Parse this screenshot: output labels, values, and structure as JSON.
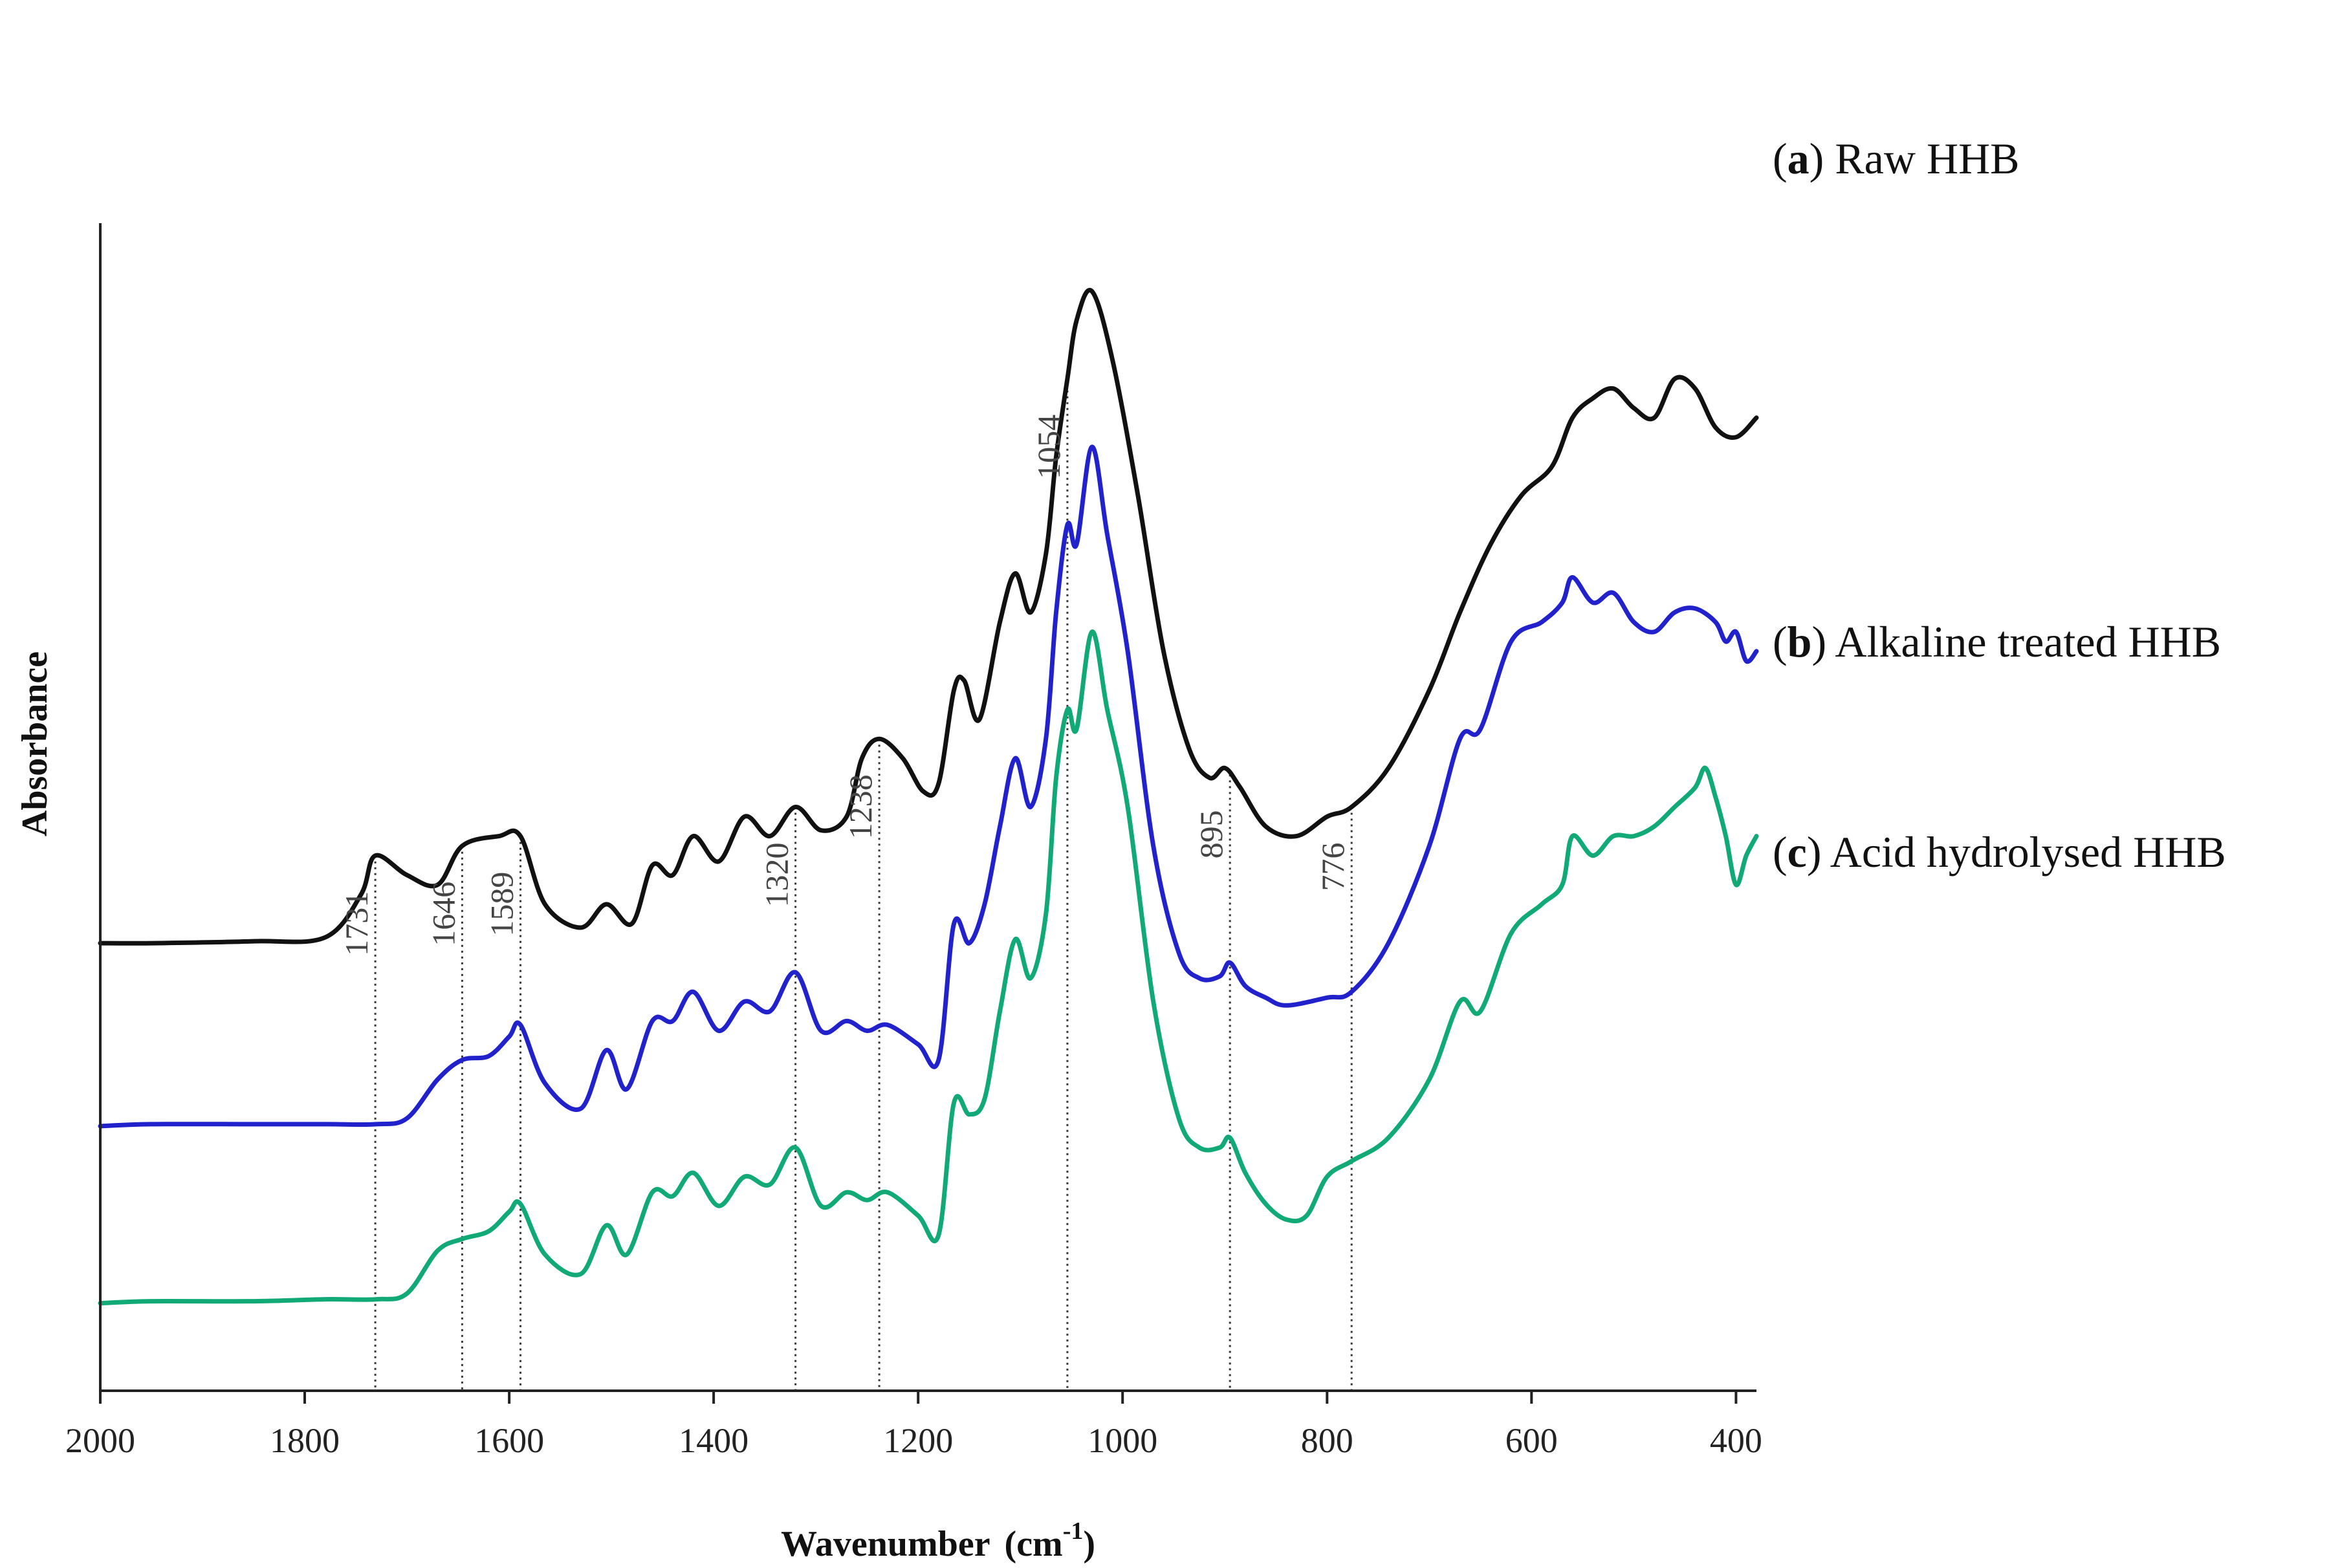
{
  "chart_data": {
    "type": "line",
    "title": "",
    "xlabel_main": "Wavenumber",
    "xlabel_unit_prefix": "(cm",
    "xlabel_unit_sup": "-1",
    "xlabel_unit_suffix": ")",
    "ylabel": "Absorbance",
    "xlim": [
      2000,
      380
    ],
    "x_reversed": true,
    "xticks": [
      "2000",
      "1800",
      "1600",
      "1400",
      "1200",
      "1000",
      "800",
      "600",
      "400"
    ],
    "xtick_values": [
      2000,
      1800,
      1600,
      1400,
      1200,
      1000,
      800,
      600,
      400
    ],
    "y_ticks_shown": false,
    "peak_markers": [
      {
        "value": 1731,
        "label": "1731"
      },
      {
        "value": 1646,
        "label": "1646"
      },
      {
        "value": 1589,
        "label": "1589"
      },
      {
        "value": 1320,
        "label": "1320"
      },
      {
        "value": 1238,
        "label": "1238"
      },
      {
        "value": 1054,
        "label": "1054"
      },
      {
        "value": 895,
        "label": "895"
      },
      {
        "value": 776,
        "label": "776"
      }
    ],
    "series": [
      {
        "name": "Raw HHB",
        "letter": "a",
        "legend_open": "(",
        "legend_close": ")",
        "legend_text": " Raw HHB",
        "color": "#111111",
        "points": [
          [
            2000,
            1.9
          ],
          [
            1950,
            1.9
          ],
          [
            1850,
            1.91
          ],
          [
            1780,
            1.93
          ],
          [
            1745,
            2.15
          ],
          [
            1731,
            2.35
          ],
          [
            1700,
            2.25
          ],
          [
            1670,
            2.2
          ],
          [
            1646,
            2.4
          ],
          [
            1610,
            2.45
          ],
          [
            1589,
            2.45
          ],
          [
            1565,
            2.1
          ],
          [
            1530,
            1.98
          ],
          [
            1505,
            2.1
          ],
          [
            1480,
            2.0
          ],
          [
            1460,
            2.3
          ],
          [
            1440,
            2.25
          ],
          [
            1420,
            2.45
          ],
          [
            1395,
            2.32
          ],
          [
            1370,
            2.55
          ],
          [
            1345,
            2.45
          ],
          [
            1320,
            2.6
          ],
          [
            1295,
            2.48
          ],
          [
            1270,
            2.55
          ],
          [
            1255,
            2.85
          ],
          [
            1238,
            2.95
          ],
          [
            1215,
            2.85
          ],
          [
            1195,
            2.68
          ],
          [
            1180,
            2.72
          ],
          [
            1165,
            3.2
          ],
          [
            1155,
            3.25
          ],
          [
            1140,
            3.05
          ],
          [
            1120,
            3.55
          ],
          [
            1105,
            3.8
          ],
          [
            1090,
            3.6
          ],
          [
            1075,
            3.9
          ],
          [
            1065,
            4.4
          ],
          [
            1054,
            4.8
          ],
          [
            1045,
            5.1
          ],
          [
            1030,
            5.25
          ],
          [
            1010,
            4.9
          ],
          [
            985,
            4.2
          ],
          [
            960,
            3.4
          ],
          [
            935,
            2.9
          ],
          [
            915,
            2.75
          ],
          [
            900,
            2.8
          ],
          [
            885,
            2.7
          ],
          [
            860,
            2.5
          ],
          [
            830,
            2.45
          ],
          [
            800,
            2.55
          ],
          [
            776,
            2.6
          ],
          [
            740,
            2.8
          ],
          [
            700,
            3.2
          ],
          [
            670,
            3.6
          ],
          [
            640,
            3.95
          ],
          [
            610,
            4.2
          ],
          [
            580,
            4.35
          ],
          [
            560,
            4.6
          ],
          [
            540,
            4.7
          ],
          [
            520,
            4.75
          ],
          [
            500,
            4.65
          ],
          [
            480,
            4.6
          ],
          [
            460,
            4.8
          ],
          [
            440,
            4.75
          ],
          [
            420,
            4.55
          ],
          [
            400,
            4.5
          ],
          [
            380,
            4.6
          ]
        ]
      },
      {
        "name": "Alkaline treated HHB",
        "letter": "b",
        "legend_open": "(",
        "legend_close": ")",
        "legend_text": " Alkaline treated HHB",
        "color": "#2222cc",
        "points": [
          [
            2000,
            0.96
          ],
          [
            1950,
            0.97
          ],
          [
            1850,
            0.97
          ],
          [
            1780,
            0.97
          ],
          [
            1730,
            0.97
          ],
          [
            1700,
            1.0
          ],
          [
            1670,
            1.2
          ],
          [
            1646,
            1.3
          ],
          [
            1620,
            1.32
          ],
          [
            1600,
            1.42
          ],
          [
            1589,
            1.48
          ],
          [
            1565,
            1.18
          ],
          [
            1530,
            1.05
          ],
          [
            1505,
            1.35
          ],
          [
            1485,
            1.15
          ],
          [
            1460,
            1.5
          ],
          [
            1440,
            1.5
          ],
          [
            1420,
            1.65
          ],
          [
            1395,
            1.45
          ],
          [
            1370,
            1.6
          ],
          [
            1345,
            1.55
          ],
          [
            1320,
            1.75
          ],
          [
            1295,
            1.45
          ],
          [
            1270,
            1.5
          ],
          [
            1250,
            1.45
          ],
          [
            1230,
            1.48
          ],
          [
            1200,
            1.38
          ],
          [
            1180,
            1.3
          ],
          [
            1165,
            2.0
          ],
          [
            1150,
            1.9
          ],
          [
            1135,
            2.1
          ],
          [
            1120,
            2.5
          ],
          [
            1105,
            2.85
          ],
          [
            1090,
            2.6
          ],
          [
            1075,
            2.95
          ],
          [
            1065,
            3.6
          ],
          [
            1054,
            4.05
          ],
          [
            1045,
            3.95
          ],
          [
            1030,
            4.45
          ],
          [
            1015,
            4.0
          ],
          [
            995,
            3.4
          ],
          [
            970,
            2.4
          ],
          [
            945,
            1.85
          ],
          [
            925,
            1.72
          ],
          [
            905,
            1.73
          ],
          [
            895,
            1.8
          ],
          [
            880,
            1.68
          ],
          [
            860,
            1.62
          ],
          [
            840,
            1.58
          ],
          [
            800,
            1.62
          ],
          [
            776,
            1.65
          ],
          [
            740,
            1.9
          ],
          [
            700,
            2.4
          ],
          [
            670,
            2.95
          ],
          [
            650,
            3.0
          ],
          [
            620,
            3.45
          ],
          [
            590,
            3.55
          ],
          [
            570,
            3.65
          ],
          [
            560,
            3.78
          ],
          [
            540,
            3.65
          ],
          [
            520,
            3.7
          ],
          [
            500,
            3.55
          ],
          [
            480,
            3.5
          ],
          [
            460,
            3.6
          ],
          [
            440,
            3.62
          ],
          [
            420,
            3.55
          ],
          [
            410,
            3.45
          ],
          [
            400,
            3.5
          ],
          [
            390,
            3.35
          ],
          [
            380,
            3.4
          ]
        ]
      },
      {
        "name": "Acid hydrolysed HHB",
        "letter": "c",
        "legend_open": "(",
        "legend_close": ")",
        "legend_text": " Acid hydrolysed HHB",
        "color": "#11aa77",
        "points": [
          [
            2000,
            0.05
          ],
          [
            1950,
            0.06
          ],
          [
            1850,
            0.06
          ],
          [
            1780,
            0.07
          ],
          [
            1730,
            0.07
          ],
          [
            1700,
            0.1
          ],
          [
            1670,
            0.32
          ],
          [
            1646,
            0.38
          ],
          [
            1620,
            0.42
          ],
          [
            1600,
            0.52
          ],
          [
            1589,
            0.56
          ],
          [
            1565,
            0.3
          ],
          [
            1530,
            0.2
          ],
          [
            1505,
            0.45
          ],
          [
            1485,
            0.3
          ],
          [
            1460,
            0.62
          ],
          [
            1440,
            0.6
          ],
          [
            1420,
            0.72
          ],
          [
            1395,
            0.55
          ],
          [
            1370,
            0.7
          ],
          [
            1345,
            0.66
          ],
          [
            1320,
            0.85
          ],
          [
            1295,
            0.55
          ],
          [
            1270,
            0.62
          ],
          [
            1250,
            0.58
          ],
          [
            1230,
            0.62
          ],
          [
            1200,
            0.5
          ],
          [
            1180,
            0.4
          ],
          [
            1165,
            1.08
          ],
          [
            1150,
            1.02
          ],
          [
            1135,
            1.1
          ],
          [
            1120,
            1.55
          ],
          [
            1105,
            1.92
          ],
          [
            1090,
            1.72
          ],
          [
            1075,
            2.05
          ],
          [
            1065,
            2.75
          ],
          [
            1054,
            3.1
          ],
          [
            1045,
            3.0
          ],
          [
            1030,
            3.5
          ],
          [
            1015,
            3.1
          ],
          [
            995,
            2.6
          ],
          [
            970,
            1.6
          ],
          [
            945,
            1.0
          ],
          [
            925,
            0.85
          ],
          [
            905,
            0.85
          ],
          [
            895,
            0.9
          ],
          [
            880,
            0.72
          ],
          [
            860,
            0.56
          ],
          [
            840,
            0.48
          ],
          [
            820,
            0.5
          ],
          [
            800,
            0.7
          ],
          [
            776,
            0.78
          ],
          [
            740,
            0.9
          ],
          [
            700,
            1.2
          ],
          [
            670,
            1.6
          ],
          [
            650,
            1.55
          ],
          [
            620,
            1.95
          ],
          [
            590,
            2.1
          ],
          [
            570,
            2.2
          ],
          [
            560,
            2.45
          ],
          [
            540,
            2.35
          ],
          [
            520,
            2.45
          ],
          [
            500,
            2.45
          ],
          [
            480,
            2.5
          ],
          [
            460,
            2.6
          ],
          [
            440,
            2.7
          ],
          [
            430,
            2.8
          ],
          [
            420,
            2.65
          ],
          [
            410,
            2.45
          ],
          [
            400,
            2.2
          ],
          [
            390,
            2.35
          ],
          [
            380,
            2.45
          ]
        ]
      }
    ]
  }
}
